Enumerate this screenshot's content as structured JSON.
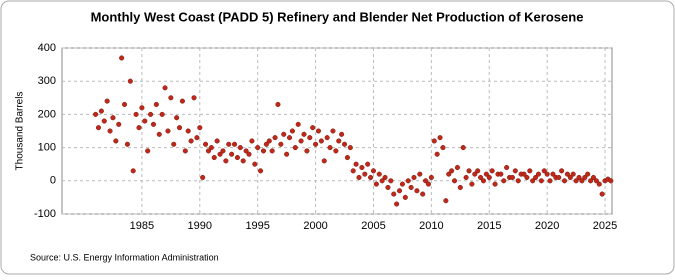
{
  "chart_data": {
    "type": "scatter",
    "title": "Monthly West Coast (PADD 5) Refinery and Blender Net Production of Kerosene",
    "y_label": "Thousand Barrels",
    "source": "Source: U.S. Energy Information Administration",
    "color": "#c0281a",
    "grid": true,
    "xlim": [
      1978.1,
      2025.6
    ],
    "xticks": [
      1985,
      1990,
      1995,
      2000,
      2005,
      2010,
      2015,
      2020,
      2025
    ],
    "ylim": [
      -100,
      400
    ],
    "yticks": [
      -100,
      0,
      100,
      200,
      300,
      400
    ],
    "x": [
      1981,
      1981.25,
      1981.5,
      1981.75,
      1982,
      1982.25,
      1982.5,
      1982.75,
      1983,
      1983.25,
      1983.5,
      1983.75,
      1984,
      1984.25,
      1984.5,
      1984.75,
      1985,
      1985.25,
      1985.5,
      1985.75,
      1986,
      1986.25,
      1986.5,
      1986.75,
      1987,
      1987.25,
      1987.5,
      1987.75,
      1988,
      1988.25,
      1988.5,
      1988.75,
      1989,
      1989.25,
      1989.5,
      1989.75,
      1990,
      1990.25,
      1990.5,
      1990.75,
      1991,
      1991.25,
      1991.5,
      1991.75,
      1992,
      1992.25,
      1992.5,
      1992.75,
      1993,
      1993.25,
      1993.5,
      1993.75,
      1994,
      1994.25,
      1994.5,
      1994.75,
      1995,
      1995.25,
      1995.5,
      1995.75,
      1996,
      1996.25,
      1996.5,
      1996.75,
      1997,
      1997.25,
      1997.5,
      1997.75,
      1998,
      1998.25,
      1998.5,
      1998.75,
      1999,
      1999.25,
      1999.5,
      1999.75,
      2000,
      2000.25,
      2000.5,
      2000.75,
      2001,
      2001.25,
      2001.5,
      2001.75,
      2002,
      2002.25,
      2002.5,
      2002.75,
      2003,
      2003.25,
      2003.5,
      2003.75,
      2004,
      2004.25,
      2004.5,
      2004.75,
      2005,
      2005.25,
      2005.5,
      2005.75,
      2006,
      2006.25,
      2006.5,
      2006.75,
      2007,
      2007.25,
      2007.5,
      2007.75,
      2008,
      2008.25,
      2008.5,
      2008.75,
      2009,
      2009.25,
      2009.5,
      2009.75,
      2010,
      2010.25,
      2010.5,
      2010.75,
      2011,
      2011.25,
      2011.5,
      2011.75,
      2012,
      2012.25,
      2012.5,
      2012.75,
      2013,
      2013.25,
      2013.5,
      2013.75,
      2014,
      2014.25,
      2014.5,
      2014.75,
      2015,
      2015.25,
      2015.5,
      2015.75,
      2016,
      2016.25,
      2016.5,
      2016.75,
      2017,
      2017.25,
      2017.5,
      2017.75,
      2018,
      2018.25,
      2018.5,
      2018.75,
      2019,
      2019.25,
      2019.5,
      2019.75,
      2020,
      2020.25,
      2020.5,
      2020.75,
      2021,
      2021.25,
      2021.5,
      2021.75,
      2022,
      2022.25,
      2022.5,
      2022.75,
      2023,
      2023.25,
      2023.5,
      2023.75,
      2024,
      2024.25,
      2024.5,
      2024.75,
      2025,
      2025.25,
      2025.5
    ],
    "values": [
      200,
      160,
      210,
      180,
      240,
      150,
      190,
      120,
      170,
      370,
      230,
      110,
      300,
      30,
      200,
      160,
      220,
      180,
      90,
      200,
      170,
      230,
      140,
      200,
      280,
      150,
      250,
      110,
      190,
      160,
      240,
      90,
      150,
      120,
      250,
      130,
      160,
      10,
      110,
      90,
      100,
      70,
      120,
      80,
      90,
      60,
      110,
      80,
      110,
      70,
      100,
      60,
      90,
      80,
      120,
      50,
      100,
      30,
      90,
      110,
      120,
      90,
      130,
      230,
      110,
      140,
      80,
      130,
      150,
      100,
      170,
      120,
      140,
      90,
      130,
      160,
      110,
      150,
      120,
      60,
      130,
      100,
      150,
      90,
      120,
      140,
      110,
      70,
      100,
      30,
      50,
      10,
      40,
      20,
      50,
      10,
      30,
      -10,
      20,
      0,
      10,
      -20,
      0,
      -40,
      -70,
      -30,
      -10,
      -50,
      0,
      -20,
      10,
      -30,
      20,
      -40,
      0,
      -10,
      10,
      120,
      80,
      130,
      100,
      -60,
      20,
      30,
      0,
      40,
      -20,
      100,
      10,
      30,
      -10,
      20,
      30,
      10,
      0,
      20,
      10,
      30,
      -10,
      20,
      20,
      0,
      40,
      10,
      10,
      30,
      0,
      20,
      20,
      10,
      30,
      0,
      10,
      20,
      0,
      30,
      20,
      0,
      20,
      10,
      10,
      30,
      0,
      20,
      10,
      20,
      0,
      10,
      0,
      10,
      20,
      0,
      10,
      0,
      -10,
      -40,
      0,
      5,
      0
    ]
  }
}
